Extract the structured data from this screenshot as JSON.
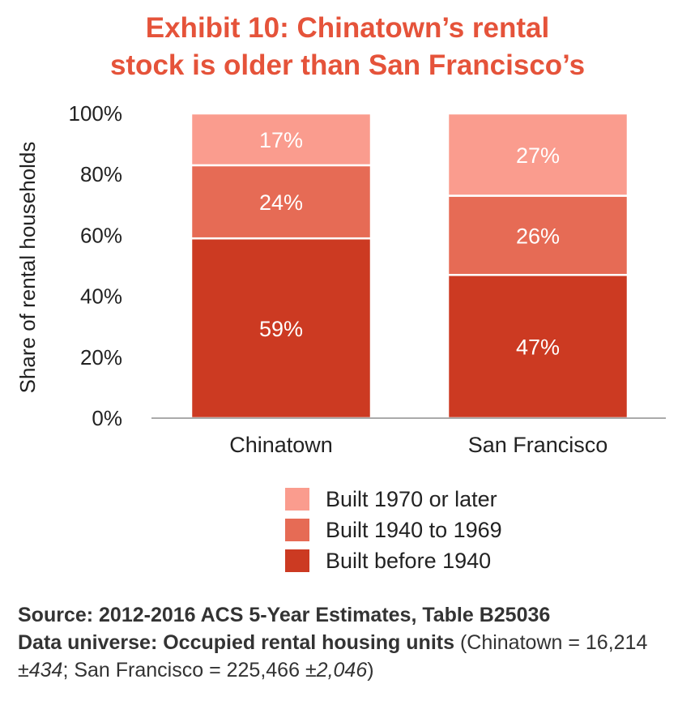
{
  "title_line1": "Exhibit 10: Chinatown’s rental",
  "title_line2": "stock is older than San Francisco’s",
  "chart_data": {
    "type": "bar",
    "stacked": true,
    "categories": [
      "Chinatown",
      "San Francisco"
    ],
    "series": [
      {
        "name": "Built before 1940",
        "values": [
          59,
          47
        ],
        "labels": [
          "59%",
          "47%"
        ],
        "color": "#cc3a22"
      },
      {
        "name": "Built 1940 to 1969",
        "values": [
          24,
          26
        ],
        "labels": [
          "24%",
          "26%"
        ],
        "color": "#e66b55"
      },
      {
        "name": "Built 1970 or later",
        "values": [
          17,
          27
        ],
        "labels": [
          "17%",
          "27%"
        ],
        "color": "#fa9c8e"
      }
    ],
    "ylabel": "Share of rental households",
    "ylim": [
      0,
      100
    ],
    "yticks": [
      "0%",
      "20%",
      "40%",
      "60%",
      "80%",
      "100%"
    ],
    "ytick_values": [
      0,
      20,
      40,
      60,
      80,
      100
    ],
    "grid": false,
    "legend_position": "bottom"
  },
  "legend": [
    {
      "label": "Built 1970 or later",
      "color": "#fa9c8e"
    },
    {
      "label": "Built 1940 to 1969",
      "color": "#e66b55"
    },
    {
      "label": "Built before 1940",
      "color": "#cc3a22"
    }
  ],
  "source": {
    "line1": "Source: 2012-2016 ACS 5-Year Estimates, Table B25036",
    "universe_bold": "Data universe: Occupied rental housing units",
    "universe_rest_a": " (Chinatown = 16,214 ±",
    "universe_moe_a": "434",
    "universe_rest_b": "; San Francisco = 225,466 ±",
    "universe_moe_b": "2,046",
    "universe_rest_c": ")"
  }
}
